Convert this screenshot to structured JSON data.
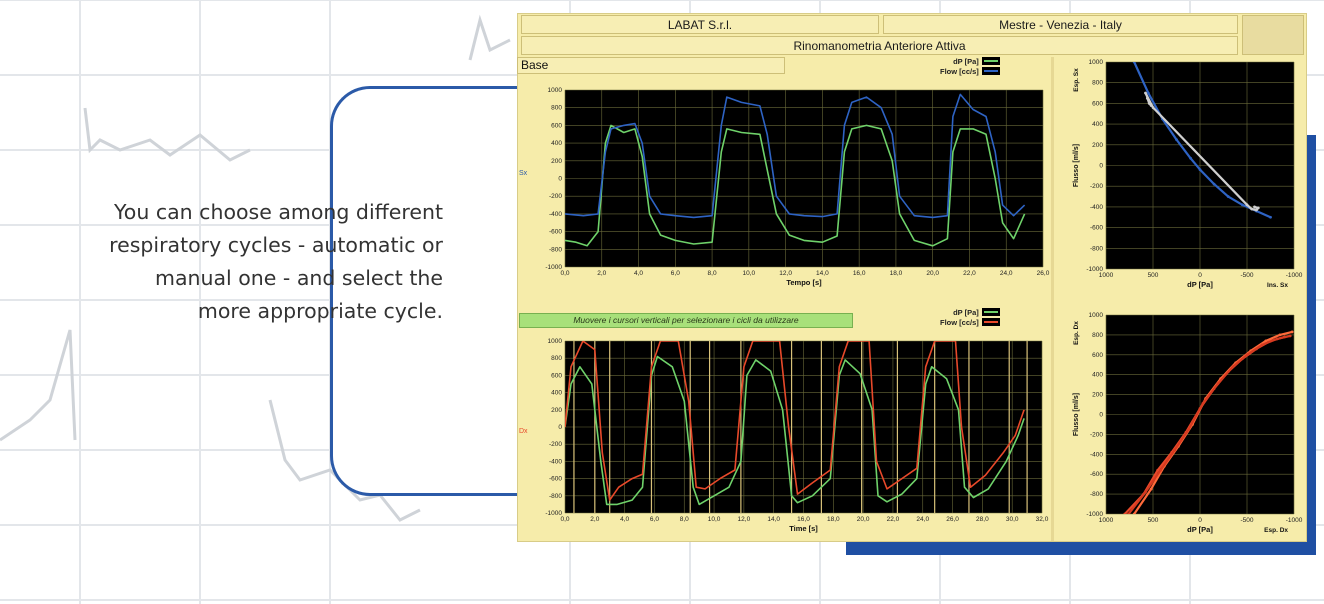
{
  "caption": {
    "lines": [
      "You can choose among different",
      "respiratory cycles - automatic or",
      "manual one - and select the",
      "more appropriate cycle."
    ]
  },
  "app": {
    "header": {
      "company": "LABAT S.r.l.",
      "location": "Mestre - Venezia - Italy",
      "title": "Rinomanometria Anteriore Attiva"
    },
    "top_panel": {
      "label": "Base",
      "side_stub": "Sx"
    },
    "bottom_panel": {
      "instruction": "Muovere i cursori verticali per selezionare i cicli da utilizzare",
      "side_stub": "Dx"
    }
  },
  "colors": {
    "dp": "#6fd26a",
    "flow_sx": "#2e63c4",
    "flow_dx": "#e8492a",
    "plot_bg": "#000000",
    "grid": "#6a6a3a",
    "cursor": "#d9c27a",
    "panel": "#f6ecaa",
    "accent_blue": "#1f4fa3"
  },
  "chart_data": [
    {
      "type": "line",
      "xlabel": "Tempo [s]",
      "ylabel": "",
      "xlim": [
        0,
        26
      ],
      "ylim": [
        -1000,
        1000
      ],
      "xticks": [
        "0,0",
        "2,0",
        "4,0",
        "6,0",
        "8,0",
        "10,0",
        "12,0",
        "14,0",
        "16,0",
        "18,0",
        "20,0",
        "22,0",
        "24,0",
        "26,0"
      ],
      "yticks": [
        "1000",
        "800",
        "600",
        "400",
        "200",
        "0",
        "-200",
        "-400",
        "-600",
        "-800",
        "-1000"
      ],
      "grid": true,
      "legend": "top-right",
      "series": [
        {
          "name": "dP [Pa]",
          "color": "#6fd26a",
          "points": [
            [
              0,
              -700
            ],
            [
              0.6,
              -720
            ],
            [
              1.2,
              -760
            ],
            [
              1.8,
              -600
            ],
            [
              2.2,
              400
            ],
            [
              2.5,
              600
            ],
            [
              3.2,
              520
            ],
            [
              3.8,
              560
            ],
            [
              4.2,
              250
            ],
            [
              4.6,
              -400
            ],
            [
              5.2,
              -640
            ],
            [
              6.0,
              -700
            ],
            [
              7.0,
              -740
            ],
            [
              8.0,
              -720
            ],
            [
              8.5,
              300
            ],
            [
              8.8,
              560
            ],
            [
              9.6,
              520
            ],
            [
              10.6,
              500
            ],
            [
              11.0,
              100
            ],
            [
              11.5,
              -400
            ],
            [
              12.2,
              -640
            ],
            [
              13,
              -700
            ],
            [
              14,
              -720
            ],
            [
              14.8,
              -650
            ],
            [
              15.2,
              300
            ],
            [
              15.6,
              560
            ],
            [
              16.4,
              600
            ],
            [
              17.2,
              560
            ],
            [
              17.8,
              200
            ],
            [
              18.2,
              -400
            ],
            [
              19,
              -700
            ],
            [
              20,
              -760
            ],
            [
              20.8,
              -680
            ],
            [
              21.1,
              300
            ],
            [
              21.5,
              560
            ],
            [
              22.2,
              560
            ],
            [
              22.9,
              500
            ],
            [
              23.4,
              0
            ],
            [
              23.8,
              -500
            ],
            [
              24.4,
              -680
            ],
            [
              25,
              -400
            ]
          ]
        },
        {
          "name": "Flow [cc/s]",
          "color": "#2e63c4",
          "points": [
            [
              0,
              -400
            ],
            [
              1,
              -420
            ],
            [
              1.8,
              -400
            ],
            [
              2.2,
              300
            ],
            [
              2.5,
              560
            ],
            [
              3.2,
              600
            ],
            [
              3.8,
              620
            ],
            [
              4.2,
              400
            ],
            [
              4.6,
              -200
            ],
            [
              5.2,
              -400
            ],
            [
              6.0,
              -420
            ],
            [
              7.0,
              -440
            ],
            [
              8.0,
              -420
            ],
            [
              8.5,
              600
            ],
            [
              8.8,
              920
            ],
            [
              9.6,
              860
            ],
            [
              10.6,
              820
            ],
            [
              11.0,
              500
            ],
            [
              11.5,
              -200
            ],
            [
              12.2,
              -400
            ],
            [
              13,
              -420
            ],
            [
              14,
              -430
            ],
            [
              14.8,
              -400
            ],
            [
              15.2,
              600
            ],
            [
              15.6,
              860
            ],
            [
              16.4,
              920
            ],
            [
              17.2,
              800
            ],
            [
              17.8,
              500
            ],
            [
              18.2,
              -200
            ],
            [
              19,
              -420
            ],
            [
              20,
              -440
            ],
            [
              20.8,
              -420
            ],
            [
              21.1,
              700
            ],
            [
              21.5,
              950
            ],
            [
              22.2,
              780
            ],
            [
              22.9,
              700
            ],
            [
              23.4,
              300
            ],
            [
              23.8,
              -300
            ],
            [
              24.4,
              -420
            ],
            [
              25,
              -300
            ]
          ]
        }
      ]
    },
    {
      "type": "scatter",
      "xlabel": "dP [Pa]",
      "ylabel": "Flusso [ml/s]",
      "corner_labels": [
        "Esp. Sx",
        "Ins. Sx"
      ],
      "xlim": [
        1000,
        -1000
      ],
      "ylim": [
        -1000,
        1000
      ],
      "xticks": [
        "1000",
        "500",
        "0",
        "-500",
        "-1000"
      ],
      "yticks": [
        "1000",
        "800",
        "600",
        "400",
        "200",
        "0",
        "-200",
        "-400",
        "-600",
        "-800",
        "-1000"
      ],
      "grid": true,
      "series": [
        {
          "name": "",
          "color": "#2e63c4",
          "points": [
            [
              700,
              1000
            ],
            [
              550,
              700
            ],
            [
              400,
              450
            ],
            [
              250,
              250
            ],
            [
              100,
              70
            ],
            [
              0,
              -40
            ],
            [
              -150,
              -180
            ],
            [
              -300,
              -300
            ],
            [
              -450,
              -380
            ],
            [
              -600,
              -440
            ],
            [
              -750,
              -500
            ]
          ]
        },
        {
          "name": "",
          "color": "#cfcfcf",
          "points": [
            [
              560,
              650
            ],
            [
              540,
              600
            ],
            [
              520,
              580
            ],
            [
              580,
              700
            ],
            [
              500,
              560
            ],
            [
              -500,
              -380
            ],
            [
              -550,
              -420
            ],
            [
              -600,
              -430
            ],
            [
              -620,
              -410
            ],
            [
              -580,
              -400
            ]
          ]
        }
      ]
    },
    {
      "type": "line",
      "xlabel": "Time [s]",
      "ylabel": "",
      "xlim": [
        0,
        32
      ],
      "ylim": [
        -1000,
        1000
      ],
      "xticks": [
        "0,0",
        "2,0",
        "4,0",
        "6,0",
        "8,0",
        "10,0",
        "12,0",
        "14,0",
        "16,0",
        "18,0",
        "20,0",
        "22,0",
        "24,0",
        "26,0",
        "28,0",
        "30,0",
        "32,0"
      ],
      "yticks": [
        "1000",
        "800",
        "600",
        "400",
        "200",
        "0",
        "-200",
        "-400",
        "-600",
        "-800",
        "-1000"
      ],
      "grid": true,
      "legend": "top-right",
      "cursors_x": [
        0.6,
        2.0,
        3.0,
        5.8,
        8.4,
        9.7,
        11.8,
        15.2,
        17.2,
        19.9,
        22.3,
        24.8,
        27.1,
        29.8,
        31.0
      ],
      "series": [
        {
          "name": "dP [Pa]",
          "color": "#6fd26a",
          "points": [
            [
              0,
              0
            ],
            [
              0.4,
              500
            ],
            [
              1.0,
              700
            ],
            [
              1.8,
              500
            ],
            [
              2.4,
              -400
            ],
            [
              2.8,
              -900
            ],
            [
              3.5,
              -900
            ],
            [
              4.5,
              -850
            ],
            [
              5.2,
              -700
            ],
            [
              5.8,
              600
            ],
            [
              6.2,
              820
            ],
            [
              7.2,
              700
            ],
            [
              8.0,
              300
            ],
            [
              8.6,
              -700
            ],
            [
              9.0,
              -900
            ],
            [
              10,
              -800
            ],
            [
              11,
              -700
            ],
            [
              11.8,
              -400
            ],
            [
              12.2,
              600
            ],
            [
              12.8,
              780
            ],
            [
              13.8,
              650
            ],
            [
              14.6,
              200
            ],
            [
              15.2,
              -800
            ],
            [
              15.6,
              -880
            ],
            [
              16.6,
              -800
            ],
            [
              17.8,
              -600
            ],
            [
              18.4,
              600
            ],
            [
              18.8,
              780
            ],
            [
              19.8,
              620
            ],
            [
              20.6,
              200
            ],
            [
              21.0,
              -800
            ],
            [
              21.6,
              -870
            ],
            [
              22.6,
              -780
            ],
            [
              23.6,
              -600
            ],
            [
              24.2,
              500
            ],
            [
              24.6,
              700
            ],
            [
              25.6,
              560
            ],
            [
              26.4,
              200
            ],
            [
              26.8,
              -700
            ],
            [
              27.4,
              -820
            ],
            [
              28.4,
              -720
            ],
            [
              29.6,
              -400
            ],
            [
              30.4,
              -100
            ],
            [
              30.8,
              100
            ]
          ]
        },
        {
          "name": "Flow [cc/s]",
          "color": "#e8492a",
          "points": [
            [
              0,
              0
            ],
            [
              0.4,
              700
            ],
            [
              1.2,
              1000
            ],
            [
              2.0,
              900
            ],
            [
              2.5,
              -300
            ],
            [
              3.0,
              -850
            ],
            [
              3.6,
              -700
            ],
            [
              4.5,
              -600
            ],
            [
              5.2,
              -550
            ],
            [
              5.8,
              700
            ],
            [
              6.4,
              1000
            ],
            [
              7.6,
              1000
            ],
            [
              8.3,
              300
            ],
            [
              8.8,
              -700
            ],
            [
              9.4,
              -720
            ],
            [
              10.4,
              -600
            ],
            [
              11.4,
              -500
            ],
            [
              12.0,
              700
            ],
            [
              12.6,
              1000
            ],
            [
              14.4,
              1000
            ],
            [
              15.0,
              0
            ],
            [
              15.6,
              -780
            ],
            [
              16.6,
              -650
            ],
            [
              17.8,
              -500
            ],
            [
              18.4,
              700
            ],
            [
              19.0,
              1000
            ],
            [
              20.4,
              1000
            ],
            [
              20.9,
              -400
            ],
            [
              21.6,
              -720
            ],
            [
              22.6,
              -600
            ],
            [
              23.6,
              -480
            ],
            [
              24.2,
              700
            ],
            [
              24.8,
              1000
            ],
            [
              26.2,
              1000
            ],
            [
              26.6,
              0
            ],
            [
              27.2,
              -700
            ],
            [
              28.2,
              -560
            ],
            [
              29.4,
              -300
            ],
            [
              30.2,
              -100
            ],
            [
              30.8,
              200
            ]
          ]
        }
      ]
    },
    {
      "type": "scatter",
      "xlabel": "dP [Pa]",
      "ylabel": "Flusso [ml/s]",
      "corner_labels": [
        "Esp. Dx",
        "Esp. Dx"
      ],
      "xlim": [
        1000,
        -1000
      ],
      "ylim": [
        -1000,
        1000
      ],
      "xticks": [
        "1000",
        "500",
        "0",
        "-500",
        "-1000"
      ],
      "yticks": [
        "1000",
        "800",
        "600",
        "400",
        "200",
        "0",
        "-200",
        "-400",
        "-600",
        "-800",
        "-1000"
      ],
      "grid": true,
      "series": [
        {
          "name": "",
          "color": "#e8492a",
          "points": [
            [
              800,
              -1000
            ],
            [
              600,
              -800
            ],
            [
              450,
              -560
            ],
            [
              300,
              -380
            ],
            [
              150,
              -180
            ],
            [
              0,
              60
            ],
            [
              -150,
              260
            ],
            [
              -300,
              430
            ],
            [
              -450,
              560
            ],
            [
              -600,
              660
            ],
            [
              -750,
              740
            ],
            [
              -900,
              780
            ]
          ]
        },
        {
          "name": "",
          "color": "#ff6a3a",
          "points": [
            [
              700,
              -1000
            ],
            [
              520,
              -750
            ],
            [
              380,
              -520
            ],
            [
              230,
              -320
            ],
            [
              80,
              -100
            ],
            [
              -60,
              160
            ],
            [
              -220,
              360
            ],
            [
              -380,
              520
            ],
            [
              -540,
              640
            ],
            [
              -700,
              740
            ],
            [
              -850,
              800
            ],
            [
              -980,
              830
            ]
          ]
        },
        {
          "name": "",
          "color": "#d63a20",
          "points": [
            [
              760,
              -1000
            ],
            [
              580,
              -780
            ],
            [
              420,
              -560
            ],
            [
              270,
              -360
            ],
            [
              120,
              -150
            ],
            [
              -30,
              110
            ],
            [
              -190,
              310
            ],
            [
              -350,
              480
            ],
            [
              -500,
              600
            ],
            [
              -660,
              700
            ],
            [
              -820,
              760
            ],
            [
              -960,
              790
            ]
          ]
        }
      ]
    }
  ]
}
